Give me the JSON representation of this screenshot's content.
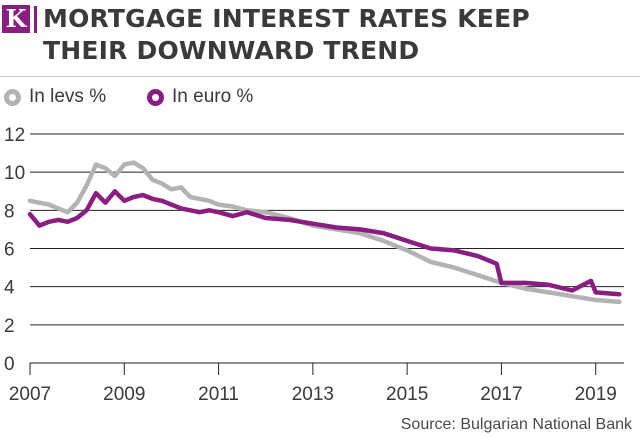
{
  "header": {
    "logo_letter": "K",
    "title_line1": "MORTGAGE INTEREST RATES KEEP",
    "title_line2": "THEIR DOWNWARD TREND"
  },
  "source": "Source: Bulgarian National Bank",
  "colors": {
    "levs": "#b3b3b3",
    "euro": "#8b1d82",
    "text": "#3a3a3a",
    "grid": "#222222"
  },
  "chart_data": {
    "type": "line",
    "title": "MORTGAGE INTEREST RATES KEEP THEIR DOWNWARD TREND",
    "xlabel": "",
    "ylabel": "",
    "xlim": [
      2007,
      2019.6
    ],
    "ylim": [
      0,
      12
    ],
    "y_ticks": [
      0,
      2,
      4,
      6,
      8,
      10,
      12
    ],
    "x_ticks": [
      2007,
      2009,
      2011,
      2013,
      2015,
      2017,
      2019
    ],
    "grid": true,
    "legend_position": "top-left",
    "series": [
      {
        "name": "In levs %",
        "color": "#b3b3b3",
        "x": [
          2007.0,
          2007.2,
          2007.4,
          2007.6,
          2007.8,
          2008.0,
          2008.2,
          2008.4,
          2008.6,
          2008.8,
          2009.0,
          2009.2,
          2009.4,
          2009.6,
          2009.8,
          2010.0,
          2010.2,
          2010.4,
          2010.6,
          2010.8,
          2011.0,
          2011.3,
          2011.6,
          2012.0,
          2012.5,
          2013.0,
          2013.5,
          2014.0,
          2014.5,
          2015.0,
          2015.5,
          2016.0,
          2016.5,
          2017.0,
          2017.5,
          2018.0,
          2018.5,
          2019.0,
          2019.5
        ],
        "values": [
          8.5,
          8.4,
          8.3,
          8.1,
          7.9,
          8.4,
          9.3,
          10.4,
          10.2,
          9.8,
          10.4,
          10.5,
          10.2,
          9.6,
          9.4,
          9.1,
          9.2,
          8.7,
          8.6,
          8.5,
          8.3,
          8.2,
          8.0,
          7.9,
          7.6,
          7.2,
          7.0,
          6.8,
          6.4,
          5.9,
          5.3,
          5.0,
          4.6,
          4.2,
          3.9,
          3.7,
          3.5,
          3.3,
          3.2
        ]
      },
      {
        "name": "In euro %",
        "color": "#8b1d82",
        "x": [
          2007.0,
          2007.2,
          2007.4,
          2007.6,
          2007.8,
          2008.0,
          2008.2,
          2008.4,
          2008.6,
          2008.8,
          2009.0,
          2009.2,
          2009.4,
          2009.6,
          2009.8,
          2010.0,
          2010.2,
          2010.4,
          2010.6,
          2010.8,
          2011.0,
          2011.3,
          2011.6,
          2012.0,
          2012.5,
          2013.0,
          2013.5,
          2014.0,
          2014.5,
          2015.0,
          2015.5,
          2016.0,
          2016.5,
          2016.9,
          2017.0,
          2017.5,
          2018.0,
          2018.5,
          2018.9,
          2019.0,
          2019.5
        ],
        "values": [
          7.8,
          7.2,
          7.4,
          7.5,
          7.4,
          7.6,
          8.0,
          8.9,
          8.4,
          9.0,
          8.5,
          8.7,
          8.8,
          8.6,
          8.5,
          8.3,
          8.1,
          8.0,
          7.9,
          8.0,
          7.9,
          7.7,
          7.9,
          7.6,
          7.5,
          7.3,
          7.1,
          7.0,
          6.8,
          6.4,
          6.0,
          5.9,
          5.6,
          5.2,
          4.2,
          4.2,
          4.1,
          3.8,
          4.3,
          3.7,
          3.6
        ]
      }
    ]
  }
}
